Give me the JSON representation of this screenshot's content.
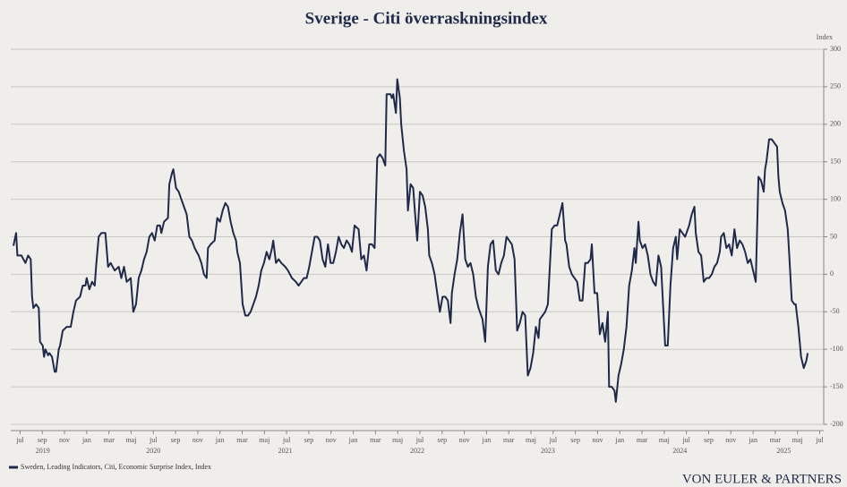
{
  "chart_data": {
    "type": "line",
    "title": "Sverige - Citi överraskningsindex",
    "y_axis_label": "Index",
    "source": "VON EULER & PARTNERS",
    "grid": true,
    "legend": "bottom-left",
    "xlim": [
      2019.43,
      2025.53
    ],
    "ylim": [
      -200,
      300
    ],
    "yticks": [
      -200,
      -150,
      -100,
      -50,
      0,
      50,
      100,
      150,
      200,
      250,
      300
    ],
    "xticks": [
      {
        "value": 2019.5,
        "label": "jul"
      },
      {
        "value": 2019.6667,
        "label": "sep"
      },
      {
        "value": 2019.8333,
        "label": "nov"
      },
      {
        "value": 2020,
        "label": "jan"
      },
      {
        "value": 2020.1667,
        "label": "mar"
      },
      {
        "value": 2020.3333,
        "label": "maj"
      },
      {
        "value": 2020.5,
        "label": "jul"
      },
      {
        "value": 2020.6667,
        "label": "sep"
      },
      {
        "value": 2020.8333,
        "label": "nov"
      },
      {
        "value": 2021,
        "label": "jan"
      },
      {
        "value": 2021.1667,
        "label": "mar"
      },
      {
        "value": 2021.3333,
        "label": "maj"
      },
      {
        "value": 2021.5,
        "label": "jul"
      },
      {
        "value": 2021.6667,
        "label": "sep"
      },
      {
        "value": 2021.8333,
        "label": "nov"
      },
      {
        "value": 2022,
        "label": "jan"
      },
      {
        "value": 2022.1667,
        "label": "mar"
      },
      {
        "value": 2022.3333,
        "label": "maj"
      },
      {
        "value": 2022.5,
        "label": "jul"
      },
      {
        "value": 2022.6667,
        "label": "sep"
      },
      {
        "value": 2022.8333,
        "label": "nov"
      },
      {
        "value": 2023,
        "label": "jan"
      },
      {
        "value": 2023.1667,
        "label": "mar"
      },
      {
        "value": 2023.3333,
        "label": "maj"
      },
      {
        "value": 2023.5,
        "label": "jul"
      },
      {
        "value": 2023.6667,
        "label": "sep"
      },
      {
        "value": 2023.8333,
        "label": "nov"
      },
      {
        "value": 2024,
        "label": "jan"
      },
      {
        "value": 2024.1667,
        "label": "mar"
      },
      {
        "value": 2024.3333,
        "label": "maj"
      },
      {
        "value": 2024.5,
        "label": "jul"
      },
      {
        "value": 2024.6667,
        "label": "sep"
      },
      {
        "value": 2024.8333,
        "label": "nov"
      },
      {
        "value": 2025,
        "label": "jan"
      },
      {
        "value": 2025.1667,
        "label": "mar"
      },
      {
        "value": 2025.3333,
        "label": "maj"
      },
      {
        "value": 2025.5,
        "label": "jul"
      }
    ],
    "year_labels": [
      {
        "value": 2019.67,
        "label": "2019"
      },
      {
        "value": 2020.5,
        "label": "2020"
      },
      {
        "value": 2021.49,
        "label": "2021"
      },
      {
        "value": 2022.48,
        "label": "2022"
      },
      {
        "value": 2023.46,
        "label": "2023"
      },
      {
        "value": 2024.45,
        "label": "2024"
      },
      {
        "value": 2025.23,
        "label": "2025"
      }
    ],
    "x": [
      2019.45,
      2019.47,
      2019.48,
      2019.51,
      2019.54,
      2019.56,
      2019.58,
      2019.59,
      2019.6,
      2019.62,
      2019.64,
      2019.65,
      2019.67,
      2019.68,
      2019.69,
      2019.71,
      2019.72,
      2019.74,
      2019.76,
      2019.77,
      2019.79,
      2019.8,
      2019.82,
      2019.85,
      2019.88,
      2019.9,
      2019.92,
      2019.95,
      2019.97,
      2019.99,
      2020.0,
      2020.02,
      2020.04,
      2020.06,
      2020.07,
      2020.09,
      2020.11,
      2020.14,
      2020.16,
      2020.18,
      2020.21,
      2020.24,
      2020.26,
      2020.28,
      2020.3,
      2020.33,
      2020.35,
      2020.37,
      2020.39,
      2020.41,
      2020.43,
      2020.45,
      2020.47,
      2020.49,
      2020.51,
      2020.53,
      2020.55,
      2020.56,
      2020.58,
      2020.61,
      2020.62,
      2020.64,
      2020.65,
      2020.67,
      2020.69,
      2020.71,
      2020.73,
      2020.75,
      2020.77,
      2020.79,
      2020.81,
      2020.84,
      2020.86,
      2020.88,
      2020.9,
      2020.91,
      2020.93,
      2020.96,
      2020.98,
      2021.0,
      2021.02,
      2021.04,
      2021.06,
      2021.08,
      2021.1,
      2021.12,
      2021.13,
      2021.15,
      2021.17,
      2021.19,
      2021.21,
      2021.23,
      2021.25,
      2021.27,
      2021.29,
      2021.31,
      2021.33,
      2021.35,
      2021.37,
      2021.39,
      2021.4,
      2021.42,
      2021.44,
      2021.46,
      2021.49,
      2021.51,
      2021.54,
      2021.57,
      2021.59,
      2021.61,
      2021.63,
      2021.65,
      2021.67,
      2021.69,
      2021.71,
      2021.73,
      2021.75,
      2021.77,
      2021.79,
      2021.81,
      2021.83,
      2021.85,
      2021.87,
      2021.89,
      2021.91,
      2021.93,
      2021.95,
      2021.97,
      2021.99,
      2022.01,
      2022.04,
      2022.06,
      2022.08,
      2022.1,
      2022.12,
      2022.14,
      2022.16,
      2022.18,
      2022.2,
      2022.22,
      2022.24,
      2022.25,
      2022.28,
      2022.29,
      2022.3,
      2022.32,
      2022.33,
      2022.35,
      2022.36,
      2022.38,
      2022.4,
      2022.41,
      2022.43,
      2022.45,
      2022.46,
      2022.48,
      2022.5,
      2022.52,
      2022.54,
      2022.56,
      2022.57,
      2022.59,
      2022.61,
      2022.63,
      2022.65,
      2022.67,
      2022.69,
      2022.71,
      2022.73,
      2022.74,
      2022.76,
      2022.78,
      2022.8,
      2022.82,
      2022.84,
      2022.86,
      2022.88,
      2022.9,
      2022.92,
      2022.94,
      2022.97,
      2022.99,
      2023.01,
      2023.03,
      2023.05,
      2023.07,
      2023.09,
      2023.11,
      2023.13,
      2023.15,
      2023.17,
      2023.19,
      2023.21,
      2023.23,
      2023.25,
      2023.27,
      2023.29,
      2023.31,
      2023.33,
      2023.35,
      2023.37,
      2023.39,
      2023.4,
      2023.42,
      2023.44,
      2023.46,
      2023.49,
      2023.51,
      2023.53,
      2023.55,
      2023.57,
      2023.59,
      2023.6,
      2023.62,
      2023.64,
      2023.66,
      2023.68,
      2023.7,
      2023.72,
      2023.74,
      2023.76,
      2023.78,
      2023.79,
      2023.81,
      2023.83,
      2023.85,
      2023.87,
      2023.89,
      2023.91,
      2023.92,
      2023.94,
      2023.96,
      2023.97,
      2023.99,
      2024.01,
      2024.03,
      2024.05,
      2024.07,
      2024.09,
      2024.11,
      2024.12,
      2024.14,
      2024.15,
      2024.17,
      2024.19,
      2024.21,
      2024.23,
      2024.25,
      2024.27,
      2024.29,
      2024.31,
      2024.32,
      2024.34,
      2024.36,
      2024.38,
      2024.4,
      2024.42,
      2024.43,
      2024.45,
      2024.47,
      2024.49,
      2024.5,
      2024.52,
      2024.54,
      2024.56,
      2024.57,
      2024.59,
      2024.61,
      2024.63,
      2024.65,
      2024.67,
      2024.69,
      2024.71,
      2024.73,
      2024.75,
      2024.76,
      2024.78,
      2024.8,
      2024.82,
      2024.84,
      2024.86,
      2024.88,
      2024.9,
      2024.92,
      2024.94,
      2024.96,
      2024.98,
      2025.0,
      2025.02,
      2025.04,
      2025.06,
      2025.08,
      2025.09,
      2025.1,
      2025.12,
      2025.14,
      2025.16,
      2025.18,
      2025.19,
      2025.2,
      2025.22,
      2025.24,
      2025.26,
      2025.27,
      2025.29,
      2025.31,
      2025.32,
      2025.34,
      2025.36,
      2025.38,
      2025.39,
      2025.4,
      2025.41
    ],
    "series": [
      {
        "name": "Sweden, Leading Indicators, Citi, Economic Surprise Index, Index",
        "color": "#1f2a4a",
        "values": [
          38,
          55,
          25,
          25,
          15,
          25,
          20,
          -30,
          -45,
          -40,
          -45,
          -90,
          -95,
          -110,
          -100,
          -108,
          -105,
          -110,
          -130,
          -130,
          -100,
          -95,
          -75,
          -70,
          -70,
          -50,
          -35,
          -30,
          -15,
          -15,
          -5,
          -20,
          -10,
          -15,
          10,
          50,
          55,
          55,
          10,
          15,
          5,
          10,
          -5,
          10,
          -10,
          -5,
          -50,
          -40,
          -5,
          5,
          20,
          30,
          50,
          55,
          45,
          65,
          65,
          55,
          70,
          75,
          120,
          135,
          140,
          115,
          110,
          100,
          90,
          80,
          50,
          45,
          35,
          25,
          15,
          0,
          -5,
          35,
          40,
          45,
          75,
          70,
          85,
          95,
          90,
          70,
          55,
          45,
          30,
          15,
          -40,
          -55,
          -55,
          -50,
          -40,
          -30,
          -15,
          5,
          15,
          30,
          20,
          35,
          45,
          15,
          20,
          15,
          10,
          5,
          -5,
          -10,
          -15,
          -10,
          -5,
          -5,
          10,
          30,
          50,
          50,
          45,
          20,
          10,
          40,
          15,
          15,
          30,
          50,
          40,
          35,
          45,
          40,
          30,
          65,
          60,
          20,
          25,
          5,
          40,
          40,
          35,
          155,
          160,
          155,
          145,
          240,
          240,
          235,
          240,
          215,
          260,
          235,
          200,
          165,
          140,
          85,
          120,
          115,
          90,
          45,
          110,
          105,
          90,
          60,
          25,
          15,
          0,
          -25,
          -50,
          -30,
          -30,
          -35,
          -65,
          -25,
          0,
          20,
          55,
          80,
          20,
          10,
          15,
          0,
          -30,
          -45,
          -60,
          -90,
          10,
          40,
          45,
          5,
          0,
          15,
          25,
          50,
          45,
          40,
          20,
          -75,
          -65,
          -50,
          -55,
          -135,
          -125,
          -105,
          -70,
          -85,
          -60,
          -55,
          -50,
          -40,
          60,
          65,
          65,
          80,
          95,
          45,
          40,
          10,
          0,
          -5,
          -10,
          -35,
          -35,
          15,
          15,
          20,
          40,
          -25,
          -25,
          -80,
          -65,
          -90,
          -50,
          -150,
          -150,
          -155,
          -170,
          -135,
          -120,
          -100,
          -70,
          -15,
          5,
          35,
          15,
          70,
          45,
          35,
          40,
          25,
          0,
          -10,
          -15,
          25,
          10,
          -25,
          -95,
          -95,
          -15,
          35,
          50,
          20,
          60,
          55,
          50,
          55,
          65,
          80,
          90,
          55,
          30,
          25,
          -10,
          -5,
          -5,
          0,
          10,
          15,
          30,
          50,
          55,
          35,
          40,
          25,
          60,
          35,
          45,
          40,
          30,
          15,
          20,
          5,
          -10,
          130,
          125,
          110,
          140,
          150,
          180,
          180,
          175,
          170,
          130,
          110,
          95,
          85,
          60,
          30,
          -35,
          -40,
          -40,
          -70,
          -110,
          -125,
          -120,
          -115,
          -105
        ]
      }
    ]
  }
}
